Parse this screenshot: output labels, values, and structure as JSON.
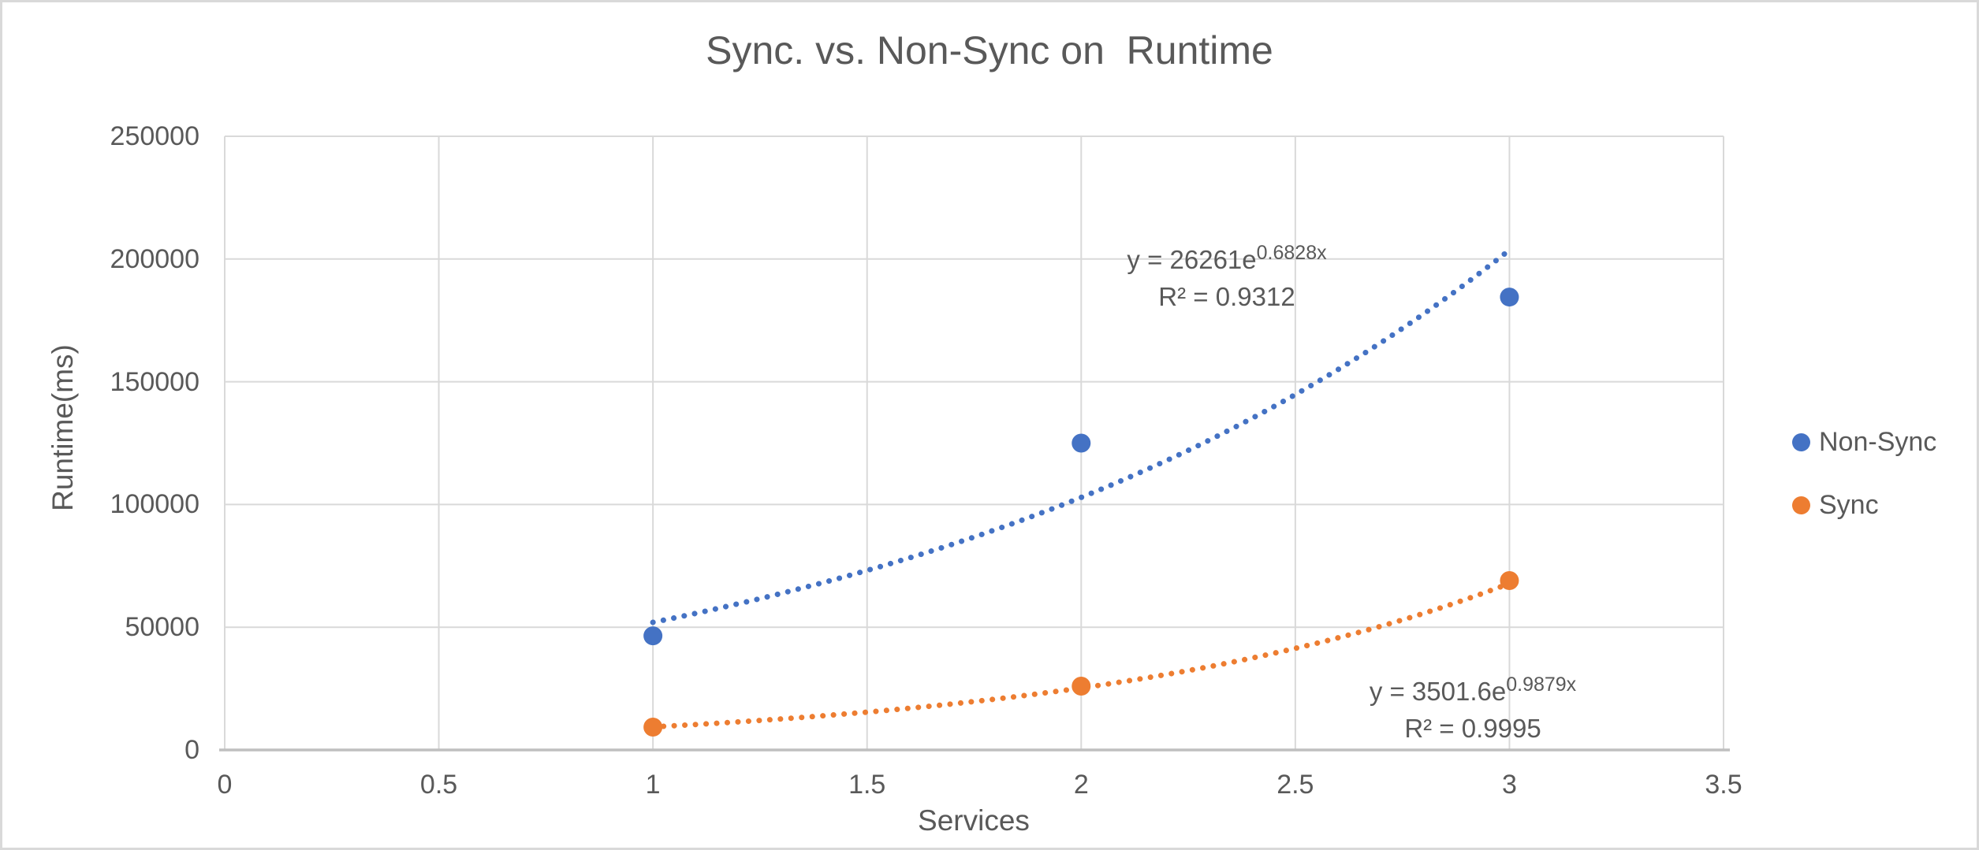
{
  "page": {
    "background": "#FFFFFF",
    "border_color": "#D9D9D9"
  },
  "chart": {
    "title": "Sync. vs. Non-Sync on  Runtime",
    "x_axis_title": "Services",
    "y_axis_title": "Runtime(ms)"
  },
  "legend": {
    "position": "right",
    "items": [
      {
        "label": "Non-Sync",
        "color": "#4472C4",
        "marker": "circle"
      },
      {
        "label": "Sync",
        "color": "#ED7D31",
        "marker": "circle"
      }
    ]
  },
  "equations": {
    "nonsync": {
      "formula_prefix": "y = 26261e",
      "formula_exponent": "0.6828x",
      "r_squared": "R² = 0.9312"
    },
    "sync": {
      "formula_prefix": "y = 3501.6e",
      "formula_exponent": "0.9879x",
      "r_squared": "R² = 0.9995"
    }
  },
  "chart_data": {
    "type": "scatter",
    "title": "Sync. vs. Non-Sync on  Runtime",
    "xlabel": "Services",
    "ylabel": "Runtime(ms)",
    "xlim": [
      0,
      3.5
    ],
    "ylim": [
      0,
      250000
    ],
    "x_ticks": [
      0,
      0.5,
      1,
      1.5,
      2,
      2.5,
      3,
      3.5
    ],
    "y_ticks": [
      0,
      50000,
      100000,
      150000,
      200000,
      250000
    ],
    "grid": true,
    "legend_position": "right",
    "series": [
      {
        "name": "Non-Sync",
        "color": "#4472C4",
        "x": [
          1,
          2,
          3
        ],
        "y": [
          46500,
          125000,
          184500
        ],
        "trendline": {
          "type": "exponential",
          "a": 26261,
          "b": 0.6828,
          "r_squared": 0.9312,
          "equation": "y = 26261e^(0.6828x)",
          "x_range": [
            1,
            3
          ],
          "style": "dotted"
        }
      },
      {
        "name": "Sync",
        "color": "#ED7D31",
        "x": [
          1,
          2,
          3
        ],
        "y": [
          9300,
          26000,
          69000
        ],
        "trendline": {
          "type": "exponential",
          "a": 3501.6,
          "b": 0.9879,
          "r_squared": 0.9995,
          "equation": "y = 3501.6e^(0.9879x)",
          "x_range": [
            1,
            3
          ],
          "style": "dotted"
        }
      }
    ],
    "colors": {
      "text": "#595959",
      "gridline": "#D9D9D9",
      "axis_line": "#BFBFBF",
      "background": "#FFFFFF"
    }
  }
}
